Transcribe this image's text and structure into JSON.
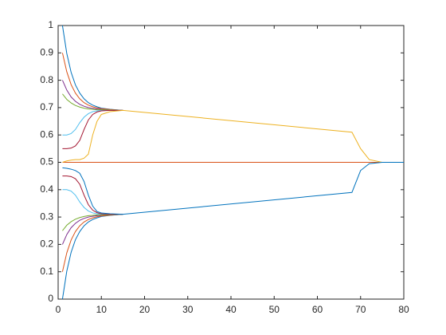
{
  "chart_data": {
    "type": "line",
    "x": [
      1,
      2,
      3,
      4,
      5,
      6,
      7,
      8,
      9,
      10,
      12,
      15,
      68,
      70,
      72,
      75,
      80
    ],
    "xlim": [
      0,
      80
    ],
    "xticks": [
      0,
      10,
      20,
      30,
      40,
      50,
      60,
      70,
      80
    ],
    "ylim": [
      0,
      1
    ],
    "yticks": [
      0,
      0.1,
      0.2,
      0.3,
      0.4,
      0.5,
      0.6,
      0.7,
      0.8,
      0.9,
      1
    ],
    "grid": false,
    "series": [
      {
        "color": "#0072BD",
        "values": [
          1.0,
          0.898,
          0.829,
          0.783,
          0.753,
          0.732,
          0.718,
          0.709,
          0.703,
          0.698,
          0.694,
          0.69,
          null,
          null,
          null,
          null,
          null
        ]
      },
      {
        "color": "#D95319",
        "values": [
          0.9,
          0.831,
          0.784,
          0.753,
          0.732,
          0.718,
          0.709,
          0.703,
          0.699,
          0.696,
          0.693,
          0.69,
          null,
          null,
          null,
          null,
          null
        ]
      },
      {
        "color": "#7E2F8E",
        "values": [
          0.8,
          0.764,
          0.739,
          0.723,
          0.712,
          0.705,
          0.7,
          0.697,
          0.695,
          0.693,
          0.691,
          0.69,
          null,
          null,
          null,
          null,
          null
        ]
      },
      {
        "color": "#77AC30",
        "values": [
          0.75,
          0.73,
          0.717,
          0.708,
          0.702,
          0.698,
          0.695,
          0.694,
          0.692,
          0.692,
          0.691,
          0.69,
          null,
          null,
          null,
          null,
          null
        ]
      },
      {
        "color": "#4DBEEE",
        "values": [
          0.6,
          0.6,
          0.605,
          0.62,
          0.645,
          0.665,
          0.678,
          0.685,
          0.688,
          0.689,
          0.69,
          0.69,
          null,
          null,
          null,
          null,
          null
        ]
      },
      {
        "color": "#A2142F",
        "values": [
          0.55,
          0.55,
          0.552,
          0.56,
          0.58,
          0.62,
          0.655,
          0.675,
          0.684,
          0.688,
          0.69,
          0.69,
          null,
          null,
          null,
          null,
          null
        ]
      },
      {
        "color": "#0072BD",
        "values": [
          0.0,
          0.102,
          0.171,
          0.217,
          0.247,
          0.268,
          0.282,
          0.291,
          0.297,
          0.302,
          0.306,
          0.31,
          null,
          null,
          null,
          null,
          null
        ]
      },
      {
        "color": "#D95319",
        "values": [
          0.1,
          0.169,
          0.216,
          0.247,
          0.268,
          0.282,
          0.291,
          0.297,
          0.301,
          0.304,
          0.307,
          0.31,
          null,
          null,
          null,
          null,
          null
        ]
      },
      {
        "color": "#7E2F8E",
        "values": [
          0.2,
          0.236,
          0.261,
          0.277,
          0.288,
          0.295,
          0.3,
          0.303,
          0.305,
          0.307,
          0.309,
          0.31,
          null,
          null,
          null,
          null,
          null
        ]
      },
      {
        "color": "#77AC30",
        "values": [
          0.25,
          0.27,
          0.283,
          0.292,
          0.298,
          0.302,
          0.305,
          0.306,
          0.308,
          0.308,
          0.309,
          0.31,
          null,
          null,
          null,
          null,
          null
        ]
      },
      {
        "color": "#4DBEEE",
        "values": [
          0.4,
          0.4,
          0.395,
          0.38,
          0.355,
          0.335,
          0.322,
          0.315,
          0.312,
          0.311,
          0.31,
          0.31,
          null,
          null,
          null,
          null,
          null
        ]
      },
      {
        "color": "#A2142F",
        "values": [
          0.45,
          0.45,
          0.448,
          0.44,
          0.42,
          0.38,
          0.345,
          0.325,
          0.316,
          0.312,
          0.31,
          0.31,
          null,
          null,
          null,
          null,
          null
        ]
      },
      {
        "color": "#D95319",
        "values": [
          0.5,
          0.5,
          0.5,
          0.5,
          0.5,
          0.5,
          0.5,
          0.5,
          0.5,
          0.5,
          0.5,
          0.5,
          0.5,
          0.5,
          0.5,
          0.5,
          0.5
        ]
      },
      {
        "color": "#EDB120",
        "values": [
          0.5,
          0.505,
          0.508,
          0.51,
          0.51,
          0.515,
          0.53,
          0.6,
          0.65,
          0.675,
          0.685,
          0.69,
          0.61,
          0.55,
          0.51,
          0.5,
          0.5
        ]
      },
      {
        "color": "#0072BD",
        "values": [
          0.48,
          0.478,
          0.475,
          0.47,
          0.46,
          0.43,
          0.38,
          0.34,
          0.32,
          0.315,
          0.312,
          0.31,
          0.39,
          0.47,
          0.495,
          0.5,
          0.5
        ]
      }
    ]
  }
}
